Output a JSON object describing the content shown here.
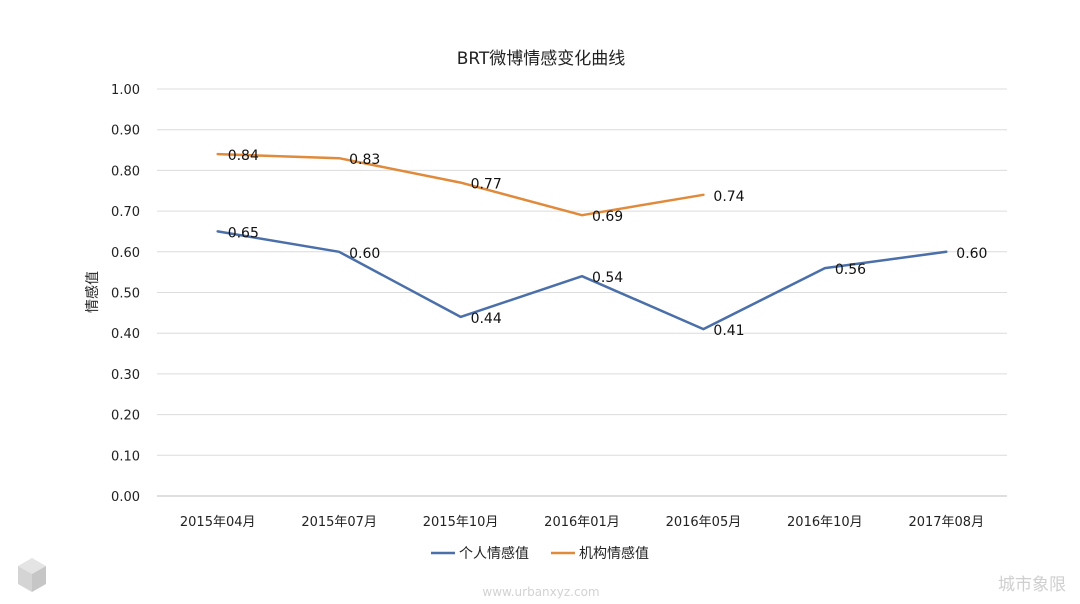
{
  "chart_data": {
    "type": "line",
    "title": "BRT微博情感变化曲线",
    "ylabel": "情感值",
    "xlabel": "",
    "categories": [
      "2015年04月",
      "2015年07月",
      "2015年10月",
      "2016年01月",
      "2016年05月",
      "2016年10月",
      "2017年08月"
    ],
    "ylim": [
      0,
      1
    ],
    "yticks": [
      "0.00",
      "0.10",
      "0.20",
      "0.30",
      "0.40",
      "0.50",
      "0.60",
      "0.70",
      "0.80",
      "0.90",
      "1.00"
    ],
    "grid": true,
    "legend_position": "bottom",
    "series": [
      {
        "name": "个人情感值",
        "color": "#4a6fa9",
        "values": [
          0.65,
          0.6,
          0.44,
          0.54,
          0.41,
          0.56,
          0.6
        ],
        "labels": [
          "0.65",
          "0.60",
          "0.44",
          "0.54",
          "0.41",
          "0.56",
          "0.60"
        ]
      },
      {
        "name": "机构情感值",
        "color": "#e08a3c",
        "values": [
          0.84,
          0.83,
          0.77,
          0.69,
          0.74,
          null,
          null
        ],
        "labels": [
          "0.84",
          "0.83",
          "0.77",
          "0.69",
          "0.74",
          null,
          null
        ]
      }
    ]
  },
  "watermark": {
    "url": "www.urbanxyz.com",
    "brand": "城市象限"
  }
}
